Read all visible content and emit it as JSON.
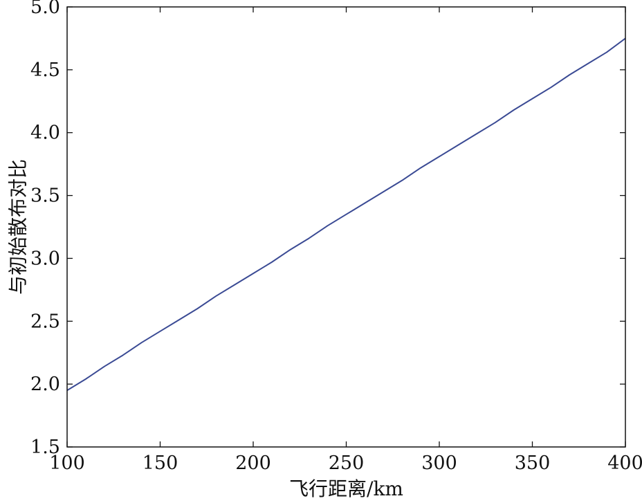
{
  "chart_data": {
    "type": "line",
    "xlabel": "飞行距离/km",
    "ylabel": "与初始散布对比",
    "xlim": [
      100,
      400
    ],
    "ylim": [
      1.5,
      5.0
    ],
    "x_ticks": [
      "100",
      "150",
      "200",
      "250",
      "300",
      "350",
      "400"
    ],
    "y_ticks": [
      "1.5",
      "2.0",
      "2.5",
      "3.0",
      "3.5",
      "4.0",
      "4.5",
      "5.0"
    ],
    "grid": false,
    "series": [
      {
        "color": "#3a4a94",
        "x": [
          100,
          110,
          120,
          130,
          140,
          150,
          160,
          170,
          180,
          190,
          200,
          210,
          220,
          230,
          240,
          250,
          260,
          270,
          280,
          290,
          300,
          310,
          320,
          330,
          340,
          350,
          360,
          370,
          380,
          390,
          400
        ],
        "y": [
          1.95,
          2.04,
          2.14,
          2.23,
          2.33,
          2.42,
          2.51,
          2.6,
          2.7,
          2.79,
          2.88,
          2.97,
          3.07,
          3.16,
          3.26,
          3.35,
          3.44,
          3.53,
          3.62,
          3.72,
          3.81,
          3.9,
          3.99,
          4.08,
          4.18,
          4.27,
          4.36,
          4.46,
          4.55,
          4.64,
          4.75
        ]
      }
    ]
  }
}
